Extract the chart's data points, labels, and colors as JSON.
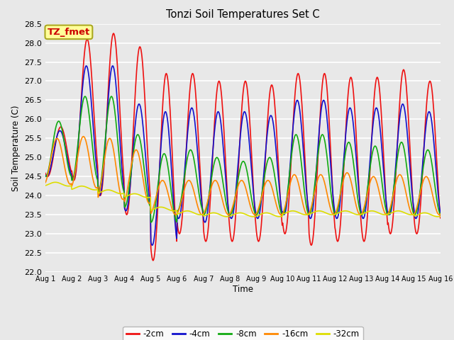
{
  "title": "Tonzi Soil Temperatures Set C",
  "xlabel": "Time",
  "ylabel": "Soil Temperature (C)",
  "ylim": [
    22.0,
    28.5
  ],
  "xlim": [
    0,
    15
  ],
  "xtick_labels": [
    "Aug 1",
    "Aug 2",
    "Aug 3",
    "Aug 4",
    "Aug 5",
    "Aug 6",
    "Aug 7",
    "Aug 8",
    "Aug 9",
    "Aug 10",
    "Aug 11",
    "Aug 12",
    "Aug 13",
    "Aug 14",
    "Aug 15",
    "Aug 16"
  ],
  "ytick_values": [
    22.0,
    22.5,
    23.0,
    23.5,
    24.0,
    24.5,
    25.0,
    25.5,
    26.0,
    26.5,
    27.0,
    27.5,
    28.0,
    28.5
  ],
  "series": {
    "-2cm": {
      "color": "#ee1111",
      "lw": 1.2
    },
    "-4cm": {
      "color": "#1111cc",
      "lw": 1.2
    },
    "-8cm": {
      "color": "#11aa11",
      "lw": 1.2
    },
    "-16cm": {
      "color": "#ff8800",
      "lw": 1.2
    },
    "-32cm": {
      "color": "#dddd00",
      "lw": 1.2
    }
  },
  "legend_label": "TZ_fmet",
  "legend_bg": "#ffff99",
  "legend_border": "#aaa820",
  "bg_color": "#e8e8e8",
  "plot_bg": "#e8e8e8",
  "day_max_2cm": [
    25.8,
    28.1,
    28.25,
    27.9,
    27.2,
    27.2,
    27.0,
    27.0,
    26.9,
    27.2,
    27.2,
    27.1,
    27.1,
    27.3,
    27.0
  ],
  "day_min_2cm": [
    24.5,
    24.4,
    24.0,
    23.5,
    22.3,
    23.0,
    22.8,
    22.8,
    22.8,
    23.0,
    22.7,
    22.8,
    22.8,
    23.0,
    23.0
  ],
  "day_max_4cm": [
    25.7,
    27.4,
    27.4,
    26.4,
    26.2,
    26.3,
    26.2,
    26.2,
    26.1,
    26.5,
    26.5,
    26.3,
    26.3,
    26.4,
    26.2
  ],
  "day_min_4cm": [
    24.5,
    24.4,
    24.0,
    23.6,
    22.7,
    23.4,
    23.3,
    23.4,
    23.4,
    23.5,
    23.4,
    23.4,
    23.4,
    23.5,
    23.4
  ],
  "day_max_8cm": [
    25.95,
    26.6,
    26.6,
    25.6,
    25.1,
    25.2,
    25.0,
    24.9,
    25.0,
    25.6,
    25.6,
    25.4,
    25.3,
    25.4,
    25.2
  ],
  "day_min_8cm": [
    24.5,
    24.4,
    24.1,
    23.7,
    23.3,
    23.6,
    23.5,
    23.5,
    23.5,
    23.5,
    23.5,
    23.5,
    23.5,
    23.5,
    23.5
  ],
  "day_max_16cm": [
    25.5,
    25.55,
    25.5,
    25.2,
    24.4,
    24.4,
    24.4,
    24.4,
    24.4,
    24.55,
    24.55,
    24.6,
    24.5,
    24.55,
    24.5
  ],
  "day_min_16cm": [
    24.3,
    24.2,
    23.9,
    23.8,
    23.5,
    23.5,
    23.5,
    23.5,
    23.5,
    23.5,
    23.5,
    23.5,
    23.5,
    23.5,
    23.5
  ],
  "day_max_32cm": [
    24.35,
    24.25,
    24.15,
    24.05,
    23.7,
    23.6,
    23.55,
    23.55,
    23.55,
    23.6,
    23.6,
    23.6,
    23.6,
    23.6,
    23.55
  ],
  "day_min_32cm": [
    24.25,
    24.15,
    24.05,
    23.95,
    23.6,
    23.5,
    23.45,
    23.45,
    23.45,
    23.5,
    23.5,
    23.5,
    23.5,
    23.5,
    23.45
  ],
  "phase_offsets": [
    0.0,
    0.2,
    0.5,
    0.9,
    1.3
  ],
  "peak_hour": 14.0,
  "pts_per_day": 48
}
